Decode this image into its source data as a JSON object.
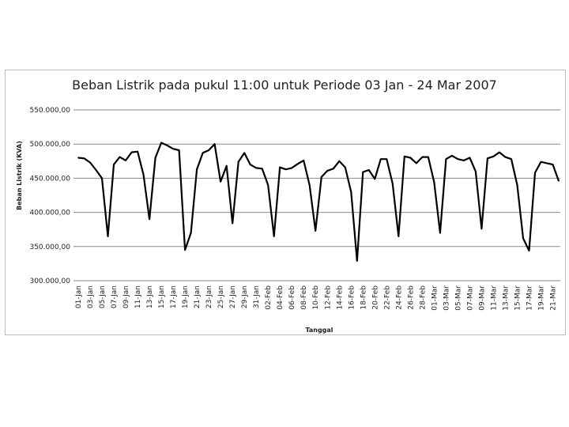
{
  "chart_data": {
    "type": "line",
    "title": "Beban Listrik pada pukul 11:00 untuk Periode  03 Jan - 24 Mar 2007",
    "xlabel": "Tanggal",
    "ylabel": "Beban Listrik (KVA)",
    "ylim": [
      300000,
      550000
    ],
    "y_ticks": [
      "300.000,00",
      "350.000,00",
      "400.000,00",
      "450.000,00",
      "500.000,00",
      "550.000,00"
    ],
    "y_tick_values": [
      300000,
      350000,
      400000,
      450000,
      500000,
      550000
    ],
    "grid": true,
    "legend": "none",
    "x_tick_labels": [
      "01-Jan",
      "03-Jan",
      "05-Jan",
      "07-Jan",
      "09-Jan",
      "11-Jan",
      "13-Jan",
      "15-Jan",
      "17-Jan",
      "19-Jan",
      "21-Jan",
      "23-Jan",
      "25-Jan",
      "27-Jan",
      "29-Jan",
      "31-Jan",
      "02-Feb",
      "04-Feb",
      "06-Feb",
      "08-Feb",
      "10-Feb",
      "12-Feb",
      "14-Feb",
      "16-Feb",
      "18-Feb",
      "20-Feb",
      "22-Feb",
      "24-Feb",
      "26-Feb",
      "28-Feb",
      "01-Mar",
      "03-Mar",
      "05-Mar",
      "07-Mar",
      "09-Mar",
      "11-Mar",
      "13-Mar",
      "15-Mar",
      "17-Mar",
      "19-Mar",
      "21-Mar"
    ],
    "series": [
      {
        "color": "#000000",
        "values": [
          480000,
          479000,
          473000,
          462000,
          450000,
          365000,
          470000,
          481000,
          476000,
          488000,
          489000,
          455000,
          390000,
          480000,
          502000,
          498000,
          493000,
          491000,
          345000,
          370000,
          463000,
          487000,
          491000,
          500000,
          445000,
          468000,
          384000,
          474000,
          487000,
          470000,
          465000,
          464000,
          440000,
          365000,
          466000,
          463000,
          465000,
          471000,
          476000,
          440000,
          373000,
          452000,
          461000,
          464000,
          475000,
          466000,
          430000,
          329000,
          459000,
          462000,
          449000,
          478000,
          478000,
          442000,
          365000,
          482000,
          480000,
          472000,
          481000,
          481000,
          444000,
          370000,
          478000,
          483000,
          478000,
          476000,
          480000,
          460000,
          376000,
          479000,
          482000,
          488000,
          481000,
          478000,
          440000,
          362000,
          344000,
          458000,
          474000,
          472000,
          470000,
          446000
        ]
      }
    ]
  }
}
